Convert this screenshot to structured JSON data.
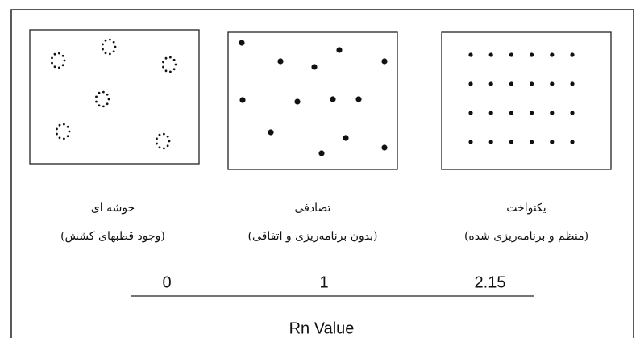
{
  "panels": [
    {
      "label": "خوشه ای",
      "sublabel": "(وجود قطبهای کشش)",
      "value": 0
    },
    {
      "label": "تصادفی",
      "sublabel": "(بدون برنامه‌ریزی و اتفاقی)",
      "value": 1
    },
    {
      "label": "یکنواخت",
      "sublabel": "(منظم و برنامه‌ریزی شده)",
      "value": 2.15
    }
  ],
  "axis_title": "Rn Value"
}
